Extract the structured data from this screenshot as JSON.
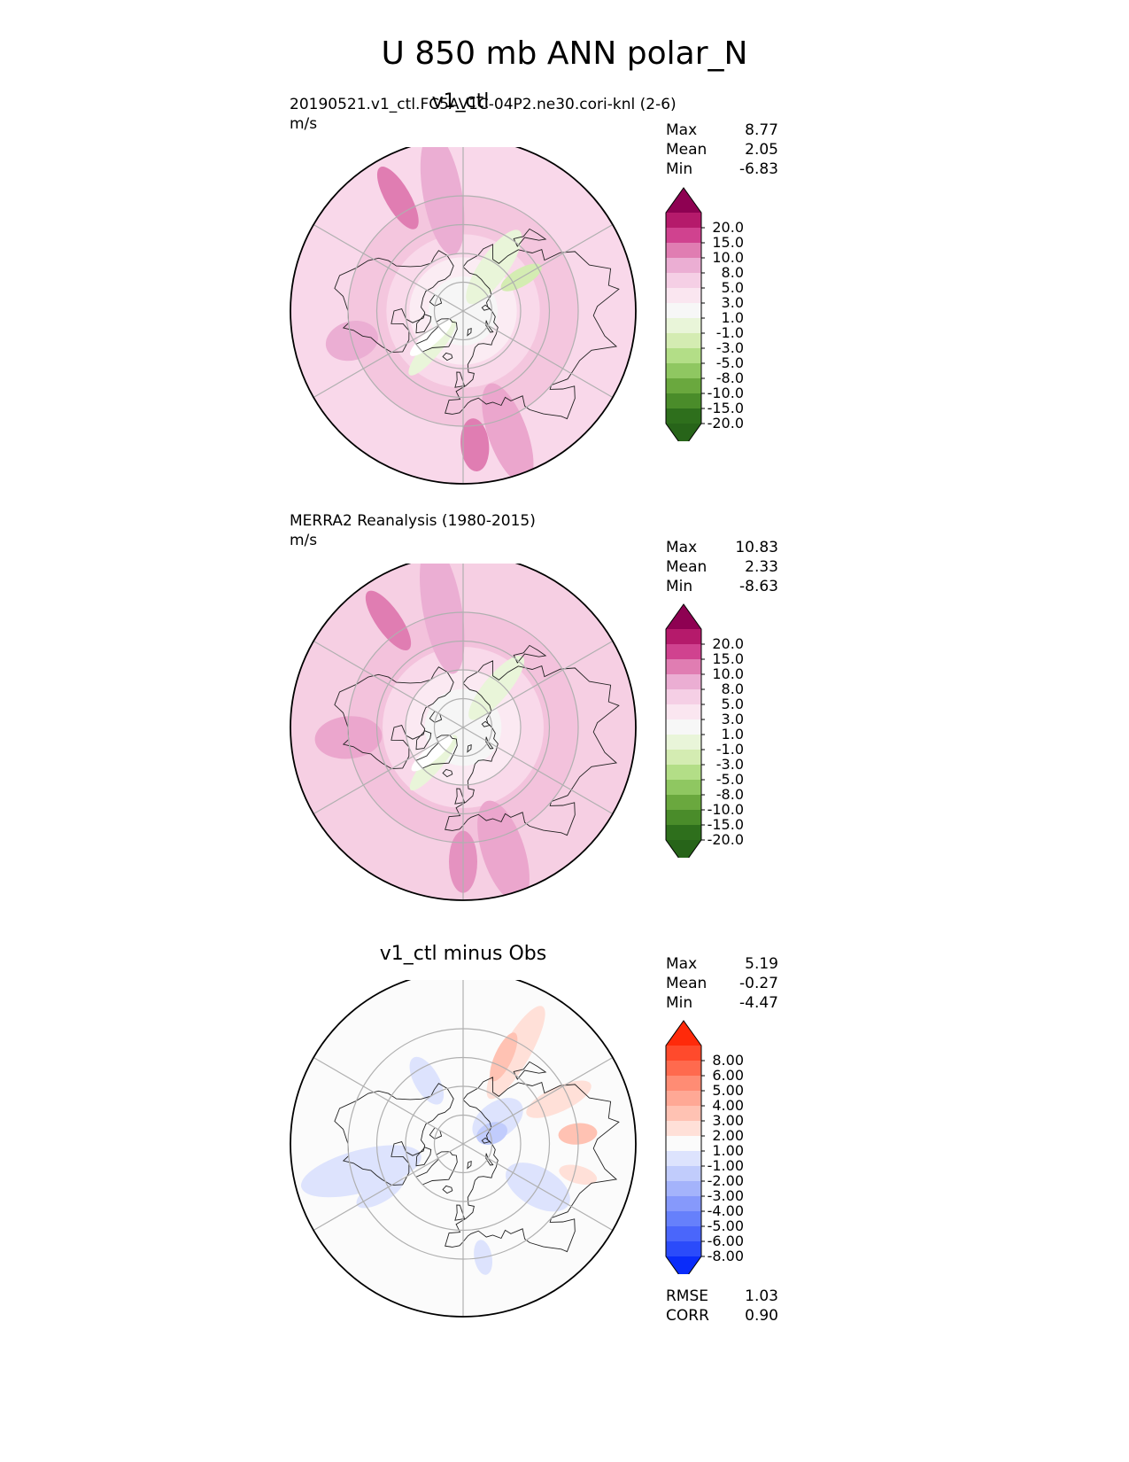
{
  "title": "U 850 mb ANN polar_N",
  "panels": [
    {
      "id": "test",
      "title": "v1_ctl",
      "subtitle": "20190521.v1_ctl.FC5AV1C-04P2.ne30.cori-knl (2-6)",
      "units": "m/s",
      "stats": [
        [
          "Max",
          "8.77"
        ],
        [
          "Mean",
          "2.05"
        ],
        [
          "Min",
          "-6.83"
        ]
      ],
      "colorbar": {
        "palette": "PiYG_r",
        "levels": [
          "20.0",
          "15.0",
          "10.0",
          "8.0",
          "5.0",
          "3.0",
          "1.0",
          "-1.0",
          "-3.0",
          "-5.0",
          "-8.0",
          "-10.0",
          "-15.0",
          "-20.0"
        ],
        "colors": [
          "#8e0152",
          "#b51a6b",
          "#d0428f",
          "#e07db2",
          "#ebaed3",
          "#f5cfe5",
          "#fae6f0",
          "#f7f7f7",
          "#e9f5d9",
          "#d4ecb2",
          "#b3de87",
          "#8fc761",
          "#6aa83e",
          "#4a8c2a",
          "#2e6f1c",
          "#276419"
        ]
      },
      "map": {
        "background": "#f9d8ea",
        "zones": [
          {
            "lat": 30,
            "color": "#f4c6de"
          },
          {
            "lat": 50,
            "color": "#f9d9ea"
          },
          {
            "lat": 62,
            "color": "#fbecf3"
          },
          {
            "lat": 72,
            "color": "#f6f6f6"
          }
        ],
        "features": [
          {
            "lon": 190,
            "lat": 28,
            "rx": 70,
            "ry": 22,
            "color": "#ebaed3"
          },
          {
            "lon": 210,
            "lat": 22,
            "rx": 40,
            "ry": 14,
            "color": "#e07db2"
          },
          {
            "lon": 20,
            "lat": 22,
            "rx": 60,
            "ry": 22,
            "color": "#eba6cd"
          },
          {
            "lon": 5,
            "lat": 20,
            "rx": 30,
            "ry": 16,
            "color": "#e07db2"
          },
          {
            "lon": 285,
            "lat": 30,
            "rx": 30,
            "ry": 22,
            "color": "#ebaed3"
          },
          {
            "lon": 145,
            "lat": 62,
            "rx": 50,
            "ry": 16,
            "color": "#e9f5d9"
          },
          {
            "lon": 120,
            "lat": 55,
            "rx": 26,
            "ry": 10,
            "color": "#d4ecb2"
          },
          {
            "lon": 320,
            "lat": 65,
            "rx": 40,
            "ry": 10,
            "color": "#e9f5d9"
          },
          {
            "lon": 310,
            "lat": 68,
            "rx": 30,
            "ry": 8,
            "color": "#ffffff"
          }
        ]
      }
    },
    {
      "id": "ref",
      "title": "",
      "subtitle": "MERRA2 Reanalysis (1980-2015)",
      "units": "m/s",
      "stats": [
        [
          "Max",
          "10.83"
        ],
        [
          "Mean",
          "2.33"
        ],
        [
          "Min",
          "-8.63"
        ]
      ],
      "colorbar": {
        "palette": "PiYG_r",
        "levels": [
          "20.0",
          "15.0",
          "10.0",
          "8.0",
          "5.0",
          "3.0",
          "1.0",
          "-1.0",
          "-3.0",
          "-5.0",
          "-8.0",
          "-10.0",
          "-15.0",
          "-20.0"
        ],
        "colors": [
          "#8e0152",
          "#b51a6b",
          "#d0428f",
          "#e07db2",
          "#ebaed3",
          "#f5cfe5",
          "#fae6f0",
          "#f7f7f7",
          "#e9f5d9",
          "#d4ecb2",
          "#b3de87",
          "#8fc761",
          "#6aa83e",
          "#4a8c2a",
          "#2e6f1c",
          "#276419"
        ]
      },
      "map": {
        "background": "#f6cfe3",
        "zones": [
          {
            "lat": 30,
            "color": "#f3c2dc"
          },
          {
            "lat": 48,
            "color": "#f9d9ea"
          },
          {
            "lat": 60,
            "color": "#fbe9f2"
          },
          {
            "lat": 70,
            "color": "#f6f6f6"
          }
        ],
        "features": [
          {
            "lon": 190,
            "lat": 27,
            "rx": 75,
            "ry": 22,
            "color": "#ebaed3"
          },
          {
            "lon": 215,
            "lat": 22,
            "rx": 40,
            "ry": 14,
            "color": "#e07db2"
          },
          {
            "lon": 18,
            "lat": 22,
            "rx": 60,
            "ry": 24,
            "color": "#eba6cd"
          },
          {
            "lon": 0,
            "lat": 20,
            "rx": 35,
            "ry": 16,
            "color": "#e592c0"
          },
          {
            "lon": 275,
            "lat": 30,
            "rx": 38,
            "ry": 24,
            "color": "#eba6cd"
          },
          {
            "lon": 140,
            "lat": 63,
            "rx": 46,
            "ry": 14,
            "color": "#e9f5d9"
          },
          {
            "lon": 320,
            "lat": 66,
            "rx": 40,
            "ry": 10,
            "color": "#e9f5d9"
          },
          {
            "lon": 310,
            "lat": 69,
            "rx": 30,
            "ry": 8,
            "color": "#ffffff"
          }
        ]
      }
    },
    {
      "id": "diff",
      "title": "v1_ctl minus Obs",
      "subtitle": "",
      "units": "",
      "stats": [
        [
          "Max",
          "5.19"
        ],
        [
          "Mean",
          "-0.27"
        ],
        [
          "Min",
          "-4.47"
        ]
      ],
      "metrics": [
        [
          "RMSE",
          "1.03"
        ],
        [
          "CORR",
          "0.90"
        ]
      ],
      "colorbar": {
        "palette": "bwr",
        "levels": [
          "8.00",
          "6.00",
          "5.00",
          "4.00",
          "3.00",
          "2.00",
          "1.00",
          "-1.00",
          "-2.00",
          "-3.00",
          "-4.00",
          "-5.00",
          "-6.00",
          "-8.00"
        ],
        "colors": [
          "#ff2a0a",
          "#ff4a2c",
          "#ff6a4e",
          "#ff8c74",
          "#ffa895",
          "#ffc2b3",
          "#ffe0d8",
          "#fbfbfb",
          "#dde3fd",
          "#c1ccfc",
          "#a4b3fb",
          "#8699fb",
          "#6680fb",
          "#4a66fb",
          "#2b4bfa",
          "#0a2cfa"
        ]
      },
      "map": {
        "background": "#fbfbfb",
        "zones": [],
        "features": [
          {
            "lon": 150,
            "lat": 35,
            "rx": 60,
            "ry": 16,
            "color": "#ffe0d8"
          },
          {
            "lon": 155,
            "lat": 40,
            "rx": 30,
            "ry": 10,
            "color": "#ffc2b3"
          },
          {
            "lon": 115,
            "lat": 35,
            "rx": 40,
            "ry": 14,
            "color": "#ffe0d8"
          },
          {
            "lon": 95,
            "lat": 30,
            "rx": 22,
            "ry": 12,
            "color": "#ffc2b3"
          },
          {
            "lon": 75,
            "lat": 28,
            "rx": 22,
            "ry": 10,
            "color": "#ffe0d8"
          },
          {
            "lon": 285,
            "lat": 35,
            "rx": 70,
            "ry": 24,
            "color": "#dde3fd"
          },
          {
            "lon": 300,
            "lat": 40,
            "rx": 30,
            "ry": 12,
            "color": "#dde3fd"
          },
          {
            "lon": 60,
            "lat": 45,
            "rx": 40,
            "ry": 22,
            "color": "#dde3fd"
          },
          {
            "lon": 125,
            "lat": 68,
            "rx": 32,
            "ry": 20,
            "color": "#dde3fd"
          },
          {
            "lon": 110,
            "lat": 74,
            "rx": 18,
            "ry": 12,
            "color": "#c1ccfc"
          },
          {
            "lon": 210,
            "lat": 52,
            "rx": 30,
            "ry": 14,
            "color": "#dde3fd"
          },
          {
            "lon": 10,
            "lat": 30,
            "rx": 20,
            "ry": 10,
            "color": "#dde3fd"
          }
        ]
      }
    }
  ]
}
